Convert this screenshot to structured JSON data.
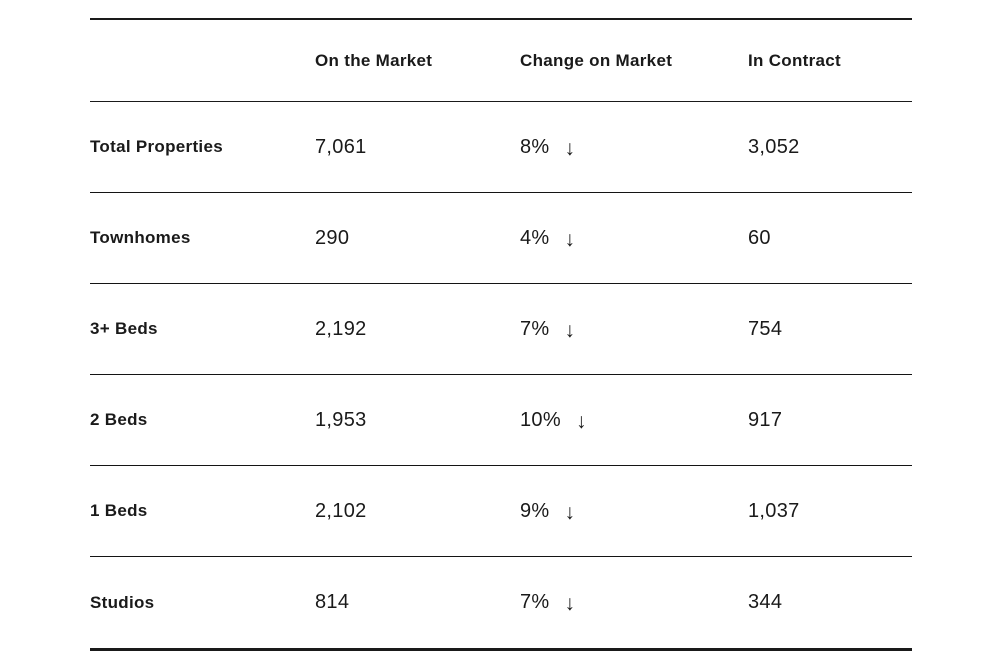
{
  "page": {
    "background_color": "#ffffff",
    "text_color": "#1a1a1a",
    "line_color": "#1a1a1a"
  },
  "icons": {
    "down_arrow": "↓"
  },
  "chart_data": {
    "type": "table",
    "title": "",
    "columns": [
      "On the Market",
      "Change on Market",
      "In Contract"
    ],
    "rows": [
      {
        "label": "Total Properties",
        "on_market": "7,061",
        "on_market_value": 7061,
        "change_percent": "8%",
        "change_direction": "down",
        "in_contract": "3,052",
        "in_contract_value": 3052
      },
      {
        "label": "Townhomes",
        "on_market": "290",
        "on_market_value": 290,
        "change_percent": "4%",
        "change_direction": "down",
        "in_contract": "60",
        "in_contract_value": 60
      },
      {
        "label": "3+ Beds",
        "on_market": "2,192",
        "on_market_value": 2192,
        "change_percent": "7%",
        "change_direction": "down",
        "in_contract": "754",
        "in_contract_value": 754
      },
      {
        "label": "2 Beds",
        "on_market": "1,953",
        "on_market_value": 1953,
        "change_percent": "10%",
        "change_direction": "down",
        "in_contract": "917",
        "in_contract_value": 917
      },
      {
        "label": "1 Beds",
        "on_market": "2,102",
        "on_market_value": 2102,
        "change_percent": "9%",
        "change_direction": "down",
        "in_contract": "1,037",
        "in_contract_value": 1037
      },
      {
        "label": "Studios",
        "on_market": "814",
        "on_market_value": 814,
        "change_percent": "7%",
        "change_direction": "down",
        "in_contract": "344",
        "in_contract_value": 344
      }
    ]
  }
}
